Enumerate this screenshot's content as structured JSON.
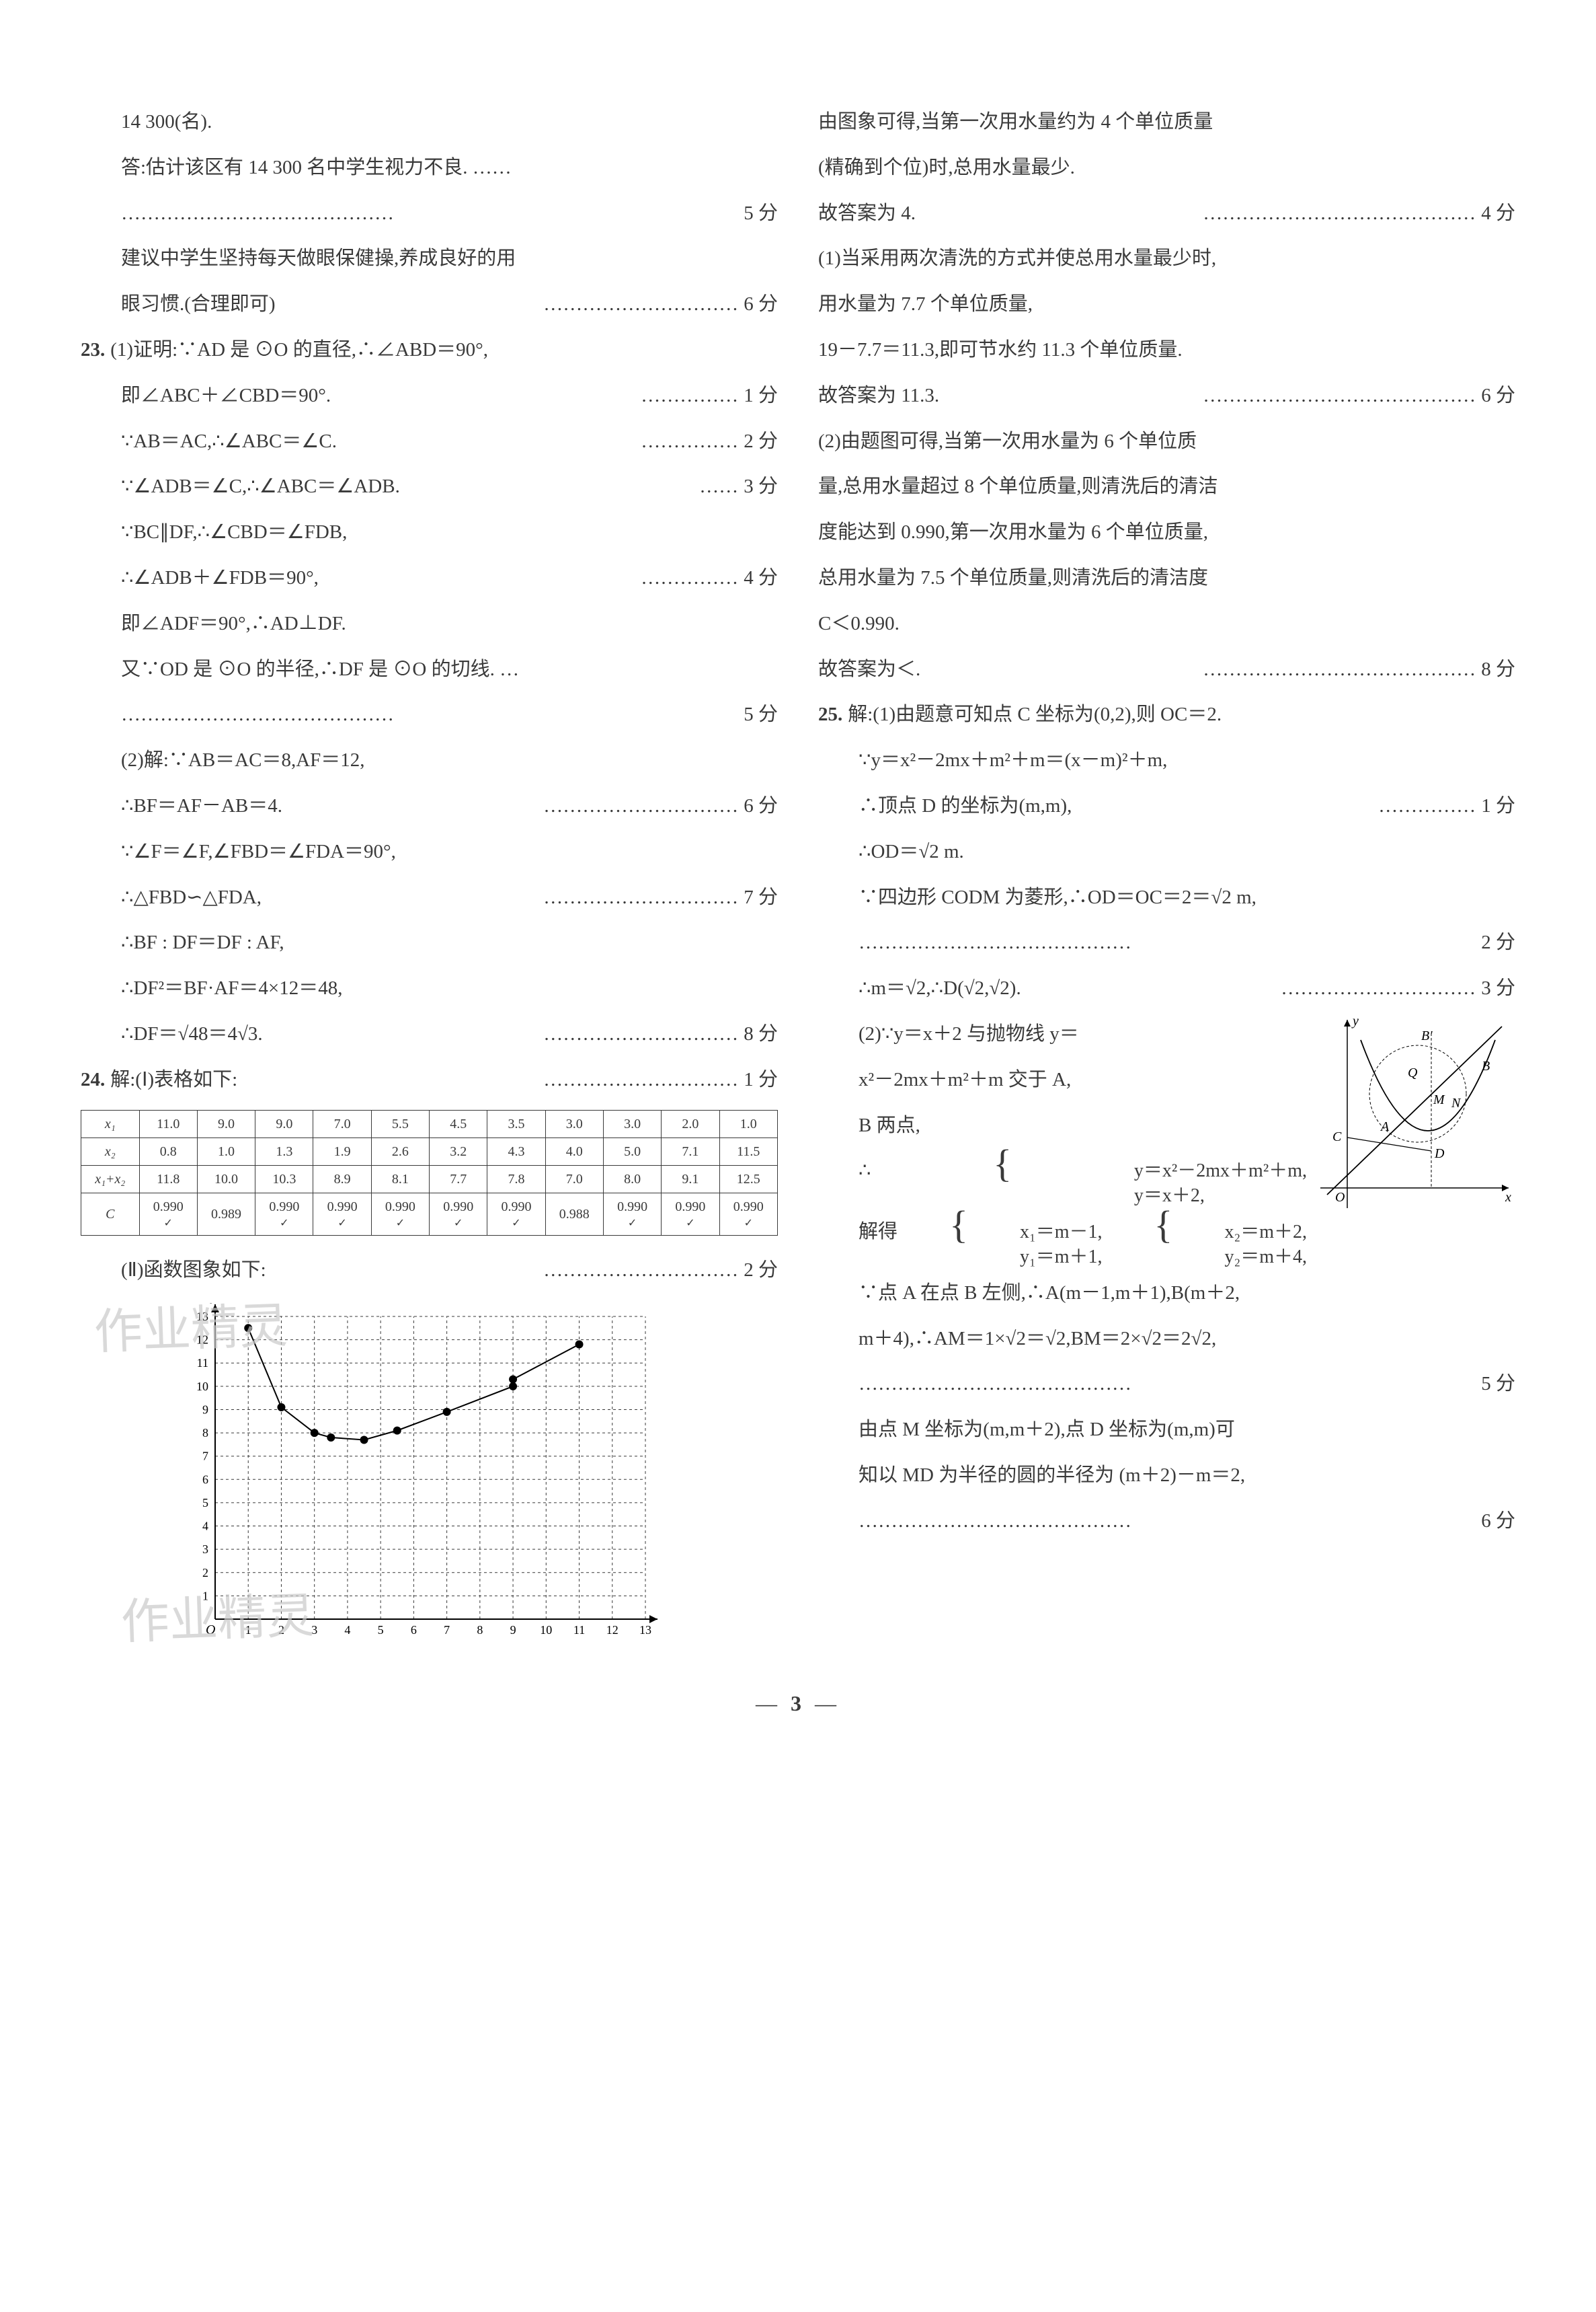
{
  "page_number": "3",
  "watermark_text": "作业精灵",
  "left": {
    "p1": "14 300(名).",
    "p2": "答:估计该区有 14 300 名中学生视力不良. ……",
    "p2_score": "5 分",
    "p3": "建议中学生坚持每天做眼保健操,养成良好的用",
    "p4": "眼习惯.(合理即可)",
    "p4_score": "6 分",
    "q23_label": "23.",
    "q23_1a": "(1)证明:∵AD 是 ⊙O 的直径,∴∠ABD＝90°,",
    "q23_1b": "即∠ABC＋∠CBD＝90°.",
    "q23_1b_score": "1 分",
    "q23_1c": "∵AB＝AC,∴∠ABC＝∠C.",
    "q23_1c_score": "2 分",
    "q23_1d": "∵∠ADB＝∠C,∴∠ABC＝∠ADB.",
    "q23_1d_score": "3 分",
    "q23_1e": "∵BC∥DF,∴∠CBD＝∠FDB,",
    "q23_1f": "∴∠ADB＋∠FDB＝90°,",
    "q23_1f_score": "4 分",
    "q23_1g": "即∠ADF＝90°,∴AD⊥DF.",
    "q23_1h": "又∵OD 是 ⊙O 的半径,∴DF 是 ⊙O 的切线. …",
    "q23_1h_score": "5 分",
    "q23_2a": "(2)解:∵AB＝AC＝8,AF＝12,",
    "q23_2b": "∴BF＝AF－AB＝4.",
    "q23_2b_score": "6 分",
    "q23_2c": "∵∠F＝∠F,∠FBD＝∠FDA＝90°,",
    "q23_2d": "∴△FBD∽△FDA,",
    "q23_2d_score": "7 分",
    "q23_2e": "∴BF : DF＝DF : AF,",
    "q23_2f": "∴DF²＝BF·AF＝4×12＝48,",
    "q23_2g": "∴DF＝√48＝4√3.",
    "q23_2g_score": "8 分",
    "q24_label": "24.",
    "q24_1": "解:(Ⅰ)表格如下:",
    "q24_1_score": "1 分",
    "q24_2": "(Ⅱ)函数图象如下:",
    "q24_2_score": "2 分"
  },
  "table": {
    "row_headers": [
      "x₁",
      "x₂",
      "x₁+x₂",
      "C"
    ],
    "cols": [
      [
        "11.0",
        "0.8",
        "11.8",
        "0.990✓"
      ],
      [
        "9.0",
        "1.0",
        "10.0",
        "0.989"
      ],
      [
        "9.0",
        "1.3",
        "10.3",
        "0.990✓"
      ],
      [
        "7.0",
        "1.9",
        "8.9",
        "0.990✓"
      ],
      [
        "5.5",
        "2.6",
        "8.1",
        "0.990✓"
      ],
      [
        "4.5",
        "3.2",
        "7.7",
        "0.990✓"
      ],
      [
        "3.5",
        "4.3",
        "7.8",
        "0.990✓"
      ],
      [
        "3.0",
        "4.0",
        "7.0",
        "0.988"
      ],
      [
        "3.0",
        "5.0",
        "8.0",
        "0.990✓"
      ],
      [
        "2.0",
        "7.1",
        "9.1",
        "0.990✓"
      ],
      [
        "1.0",
        "11.5",
        "12.5",
        "0.990✓"
      ]
    ]
  },
  "chart": {
    "type": "scatter-line",
    "x_label": "x",
    "y_label": "y",
    "xlim": [
      0,
      13
    ],
    "ylim": [
      0,
      13
    ],
    "xtick_step": 1,
    "ytick_step": 1,
    "xticks_label": "1 2 3 4 5 6 7 8 9 10 11 12 13",
    "grid_style": "dashed",
    "grid_color": "#3a3a3a",
    "axis_color": "#000000",
    "point_color": "#000000",
    "line_color": "#000000",
    "line_width": 2,
    "marker_size": 6,
    "background_color": "#ffffff",
    "points": [
      {
        "x": 1.0,
        "y": 12.5
      },
      {
        "x": 2.0,
        "y": 9.1
      },
      {
        "x": 3.0,
        "y": 8.0
      },
      {
        "x": 3.5,
        "y": 7.8
      },
      {
        "x": 4.5,
        "y": 7.7
      },
      {
        "x": 5.5,
        "y": 8.1
      },
      {
        "x": 7.0,
        "y": 8.9
      },
      {
        "x": 9.0,
        "y": 10.0
      },
      {
        "x": 9.0,
        "y": 10.3
      },
      {
        "x": 11.0,
        "y": 11.8
      }
    ]
  },
  "right": {
    "r1": "由图象可得,当第一次用水量约为 4 个单位质量",
    "r2": "(精确到个位)时,总用水量最少.",
    "r3": "故答案为 4.",
    "r3_score": "4 分",
    "r4": "(1)当采用两次清洗的方式并使总用水量最少时,",
    "r5": "用水量为 7.7 个单位质量,",
    "r6": "19－7.7＝11.3,即可节水约 11.3 个单位质量.",
    "r7": "故答案为 11.3.",
    "r7_score": "6 分",
    "r8": "(2)由题图可得,当第一次用水量为 6 个单位质",
    "r9": "量,总用水量超过 8 个单位质量,则清洗后的清洁",
    "r10": "度能达到 0.990,第一次用水量为 6 个单位质量,",
    "r11": "总用水量为 7.5 个单位质量,则清洗后的清洁度",
    "r12": "C＜0.990.",
    "r13": "故答案为＜.",
    "r13_score": "8 分",
    "q25_label": "25.",
    "q25_1a": "解:(1)由题意可知点 C 坐标为(0,2),则 OC＝2.",
    "q25_1b": "∵y＝x²－2mx＋m²＋m＝(x－m)²＋m,",
    "q25_1c": "∴顶点 D 的坐标为(m,m),",
    "q25_1c_score": "1 分",
    "q25_1d": "∴OD＝√2 m.",
    "q25_1e": "∵四边形 CODM 为菱形,∴OD＝OC＝2＝√2 m,",
    "q25_1e_score": "2 分",
    "q25_1f": "∴m＝√2,∴D(√2,√2).",
    "q25_1f_score": "3 分",
    "q25_2a": "(2)∵y＝x＋2 与抛物线 y＝",
    "q25_2b": "x²－2mx＋m²＋m 交于 A,",
    "q25_2c": "B 两点,",
    "q25_sys1_l1": "y＝x²－2mx＋m²＋m,",
    "q25_sys1_l2": "y＝x＋2,",
    "q25_sys_prefix": "∴",
    "q25_solve": "解得",
    "q25_sys2a_l1": "x₁＝m－1,",
    "q25_sys2a_l2": "y₁＝m＋1,",
    "q25_sys2b_l1": "x₂＝m＋2,",
    "q25_sys2b_l2": "y₂＝m＋4,",
    "q25_2d": "∵点 A 在点 B 左侧,∴A(m－1,m＋1),B(m＋2,",
    "q25_2e": "m＋4),∴AM＝1×√2＝√2,BM＝2×√2＝2√2,",
    "q25_2e_score": "5 分",
    "q25_2f": "由点 M 坐标为(m,m＋2),点 D 坐标为(m,m)可",
    "q25_2g": "知以 MD 为半径的圆的半径为 (m＋2)－m＝2,",
    "q25_2g_score": "6 分"
  },
  "diagram": {
    "type": "geometry",
    "x_label": "x",
    "y_label": "y",
    "axis_color": "#000000",
    "line_color": "#000000",
    "dash_color": "#000000",
    "fill": "none",
    "line_width": 1.5,
    "labels": [
      "O",
      "A",
      "B",
      "B'",
      "C",
      "D",
      "M",
      "N",
      "Q"
    ],
    "label_fontsize": 20,
    "elements": {
      "parabola": true,
      "line_y_eq_x_plus_2": true,
      "circle_dashed": true,
      "vertical_dashed": true
    }
  },
  "dots_long": "……………………………………",
  "dots_med": "…………………………",
  "dots_short": "……………"
}
